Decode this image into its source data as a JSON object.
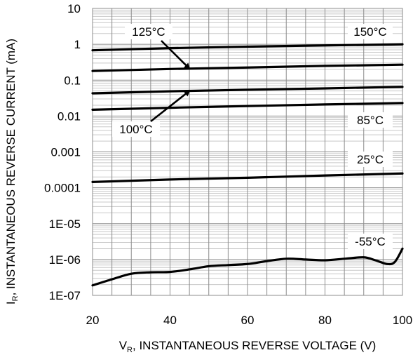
{
  "chart_data": {
    "type": "line",
    "title": "",
    "xlabel": {
      "main": "V",
      "sub": "R",
      "rest": ", INSTANTANEOUS REVERSE VOLTAGE (V)"
    },
    "ylabel": {
      "main": "I",
      "sub": "R",
      "rest": ", INSTANTANEOUS REVERSE CURRENT (mA)"
    },
    "xlim": [
      20,
      100
    ],
    "ylim": [
      1e-07,
      10
    ],
    "yscale": "log",
    "grid": true,
    "x_ticks": [
      "20",
      "40",
      "60",
      "80",
      "100"
    ],
    "y_ticks": [
      "10",
      "1",
      "0.1",
      "0.01",
      "0.001",
      "0.0001",
      "1E-05",
      "1E-06",
      "1E-07"
    ],
    "series": [
      {
        "name": "150°C",
        "x": [
          20,
          40,
          60,
          80,
          100
        ],
        "y": [
          0.68,
          0.78,
          0.86,
          0.93,
          1.0
        ]
      },
      {
        "name": "125°C",
        "x": [
          20,
          40,
          60,
          80,
          100
        ],
        "y": [
          0.18,
          0.205,
          0.225,
          0.25,
          0.27
        ]
      },
      {
        "name": "100°C",
        "x": [
          20,
          40,
          60,
          80,
          100
        ],
        "y": [
          0.043,
          0.049,
          0.054,
          0.059,
          0.065
        ]
      },
      {
        "name": "85°C",
        "x": [
          20,
          40,
          60,
          80,
          100
        ],
        "y": [
          0.015,
          0.017,
          0.019,
          0.021,
          0.023
        ]
      },
      {
        "name": "25°C",
        "x": [
          20,
          40,
          60,
          80,
          100
        ],
        "y": [
          0.000145,
          0.00017,
          0.00019,
          0.00022,
          0.00025
        ]
      },
      {
        "name": "-55°C",
        "x": [
          20,
          25,
          30,
          35,
          40,
          45,
          50,
          55,
          60,
          65,
          70,
          75,
          80,
          85,
          90,
          93,
          96,
          98,
          100
        ],
        "y": [
          1.9e-07,
          2.8e-07,
          4e-07,
          4.4e-07,
          4.5e-07,
          5.3e-07,
          6.5e-07,
          7e-07,
          7.5e-07,
          9e-07,
          1.05e-06,
          1e-06,
          9.5e-07,
          1.05e-06,
          1.15e-06,
          9.5e-07,
          7.5e-07,
          8.5e-07,
          2e-06
        ]
      }
    ],
    "curve_labels": [
      {
        "text": "150°C",
        "box": true
      },
      {
        "text": "125°C",
        "box": true,
        "arrow_to": {
          "x": 45,
          "y": 0.21
        }
      },
      {
        "text": "100°C",
        "box": true,
        "arrow_to": {
          "x": 45,
          "y": 0.05
        }
      },
      {
        "text": "85°C",
        "box": true
      },
      {
        "text": "25°C",
        "box": true
      },
      {
        "text": "-55°C",
        "box": true
      }
    ]
  }
}
